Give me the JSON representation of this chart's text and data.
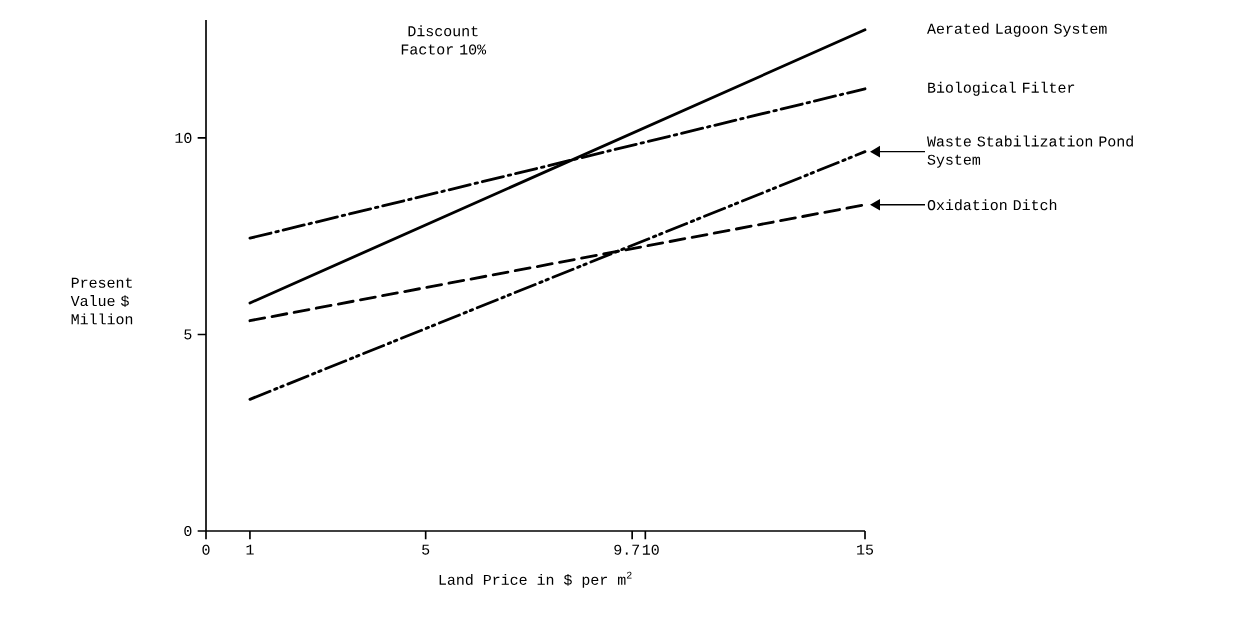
{
  "chart_data": {
    "type": "line",
    "xlabel": "Land Price in $ per m$^{2}$",
    "ylabel": "Present Value $ Million",
    "annotations": [
      "Discount Factor 10%"
    ],
    "x": [
      1,
      15
    ],
    "xlim": [
      0,
      15
    ],
    "xticks": [
      0,
      1,
      5,
      9.7,
      10,
      15
    ],
    "ylim": [
      0,
      13
    ],
    "yticks": [
      0,
      5,
      10
    ],
    "grid": false,
    "legend": "right",
    "series": [
      {
        "name": "Aerated Lagoon System",
        "color": "#000000",
        "line_style": "solid",
        "values": [
          5.8,
          12.75
        ]
      },
      {
        "name": "Biological Filter",
        "color": "#000000",
        "line_style": "dashdot",
        "values": [
          7.45,
          11.25
        ]
      },
      {
        "name": "Waste Stabilization Pond System",
        "color": "#000000",
        "line_style": "dashdotdot",
        "values": [
          3.35,
          9.65
        ]
      },
      {
        "name": "Oxidation Ditch",
        "color": "#000000",
        "line_style": "dashed",
        "values": [
          5.35,
          8.3
        ]
      }
    ]
  }
}
